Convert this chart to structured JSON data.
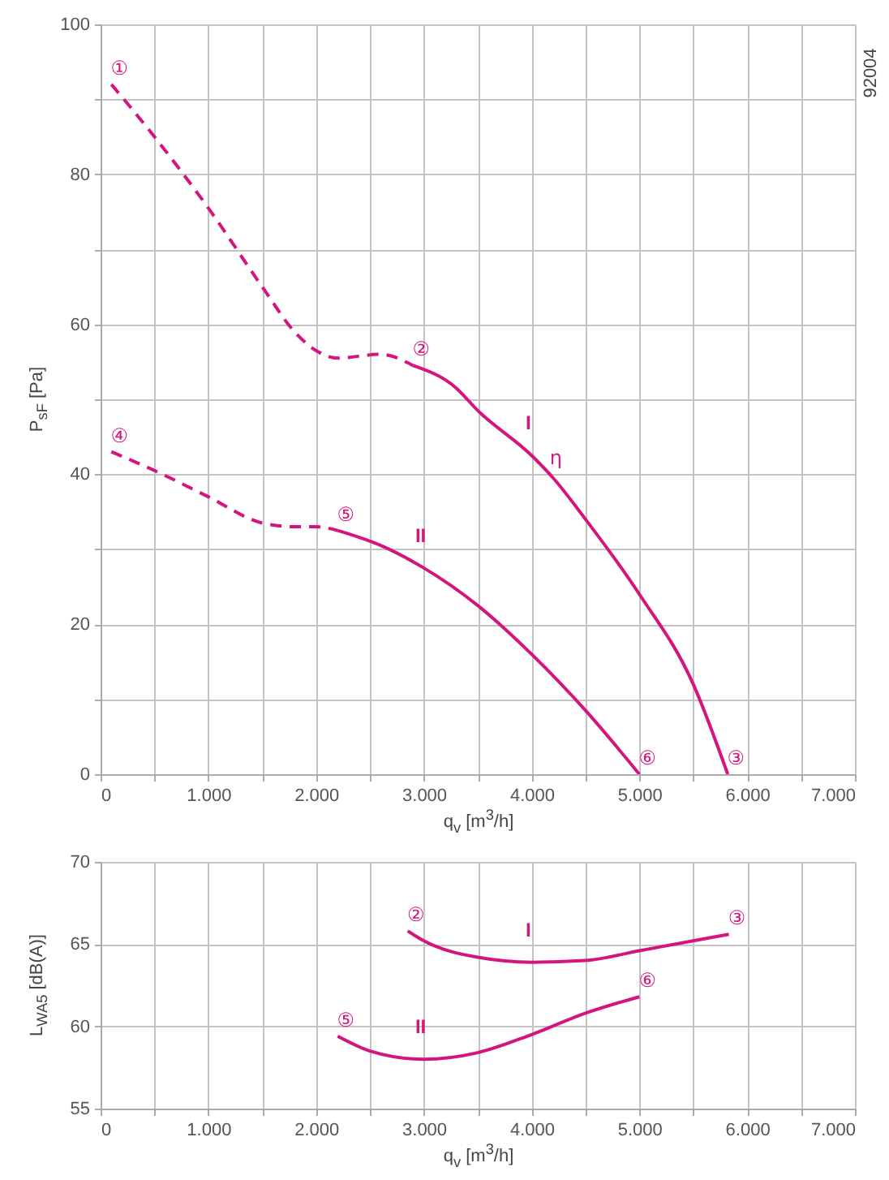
{
  "chart_data": [
    {
      "type": "line",
      "xlabel": "q$_{v}$ [m$^{3}$/h]",
      "ylabel": "P$_{sF}$ [Pa]",
      "xlim": [
        0,
        7000
      ],
      "ylim": [
        0,
        100
      ],
      "xticks": [
        0,
        {
          "value": 500,
          "label": null
        },
        {
          "value": 1000,
          "label": "1.000"
        },
        {
          "value": 1500,
          "label": null
        },
        {
          "value": 2000,
          "label": "2.000"
        },
        {
          "value": 2500,
          "label": null
        },
        {
          "value": 3000,
          "label": "3.000"
        },
        {
          "value": 3500,
          "label": null
        },
        {
          "value": 4000,
          "label": "4.000"
        },
        {
          "value": 4500,
          "label": null
        },
        {
          "value": 5000,
          "label": "5.000"
        },
        {
          "value": 5500,
          "label": null
        },
        {
          "value": 6000,
          "label": "6.000"
        },
        {
          "value": 6500,
          "label": null
        },
        {
          "value": 7000,
          "label": "7.000"
        }
      ],
      "yticks": [
        0,
        {
          "value": 10,
          "label": null
        },
        20,
        {
          "value": 30,
          "label": null
        },
        40,
        {
          "value": 50,
          "label": null
        },
        60,
        {
          "value": 70,
          "label": null
        },
        80,
        {
          "value": 90,
          "label": null
        },
        100
      ],
      "grid": true,
      "series": [
        {
          "color": "#d4157e",
          "line_style": "dashed",
          "x": [
            100,
            500,
            1000,
            1500,
            1800,
            2000,
            2200,
            2600,
            2900
          ],
          "values": [
            92,
            85,
            75.5,
            65,
            59,
            56.5,
            55.5,
            56,
            54.5
          ]
        },
        {
          "name": "I",
          "color": "#d4157e",
          "line_style": "solid",
          "x": [
            2900,
            3300,
            3500,
            4000,
            4200,
            4500,
            5000,
            5500,
            5820
          ],
          "values": [
            54.5,
            51.5,
            48.5,
            42.5,
            39.5,
            34,
            24,
            12,
            0
          ]
        },
        {
          "color": "#d4157e",
          "line_style": "dashed",
          "x": [
            100,
            500,
            1000,
            1500,
            1800,
            2000,
            2200
          ],
          "values": [
            43,
            40.5,
            37,
            33.5,
            33,
            33,
            32.5
          ]
        },
        {
          "name": "II",
          "color": "#d4157e",
          "line_style": "solid",
          "x": [
            2200,
            2600,
            3000,
            3500,
            4000,
            4500,
            5000
          ],
          "values": [
            32.5,
            30.5,
            27.5,
            22.5,
            16,
            8.5,
            0
          ]
        }
      ],
      "annotations": [
        {
          "text": "①",
          "x": 100,
          "y": 92
        },
        {
          "text": "②",
          "x": 2900,
          "y": 54.5
        },
        {
          "text": "③",
          "x": 5820,
          "y": 0
        },
        {
          "text": "④",
          "x": 100,
          "y": 43
        },
        {
          "text": "⑤",
          "x": 2200,
          "y": 32.5
        },
        {
          "text": "⑥",
          "x": 5000,
          "y": 0
        },
        {
          "text": "η",
          "x": 4150,
          "y": 40
        },
        "92004"
      ]
    },
    {
      "type": "line",
      "xlabel": "q$_{v}$ [m$^{3}$/h]",
      "ylabel": "L$_{WA5}$ [dB(A)]",
      "xlim": [
        0,
        7000
      ],
      "ylim": [
        55,
        70
      ],
      "xticks": [
        0,
        {
          "value": 500,
          "label": null
        },
        {
          "value": 1000,
          "label": "1.000"
        },
        {
          "value": 1500,
          "label": null
        },
        {
          "value": 2000,
          "label": "2.000"
        },
        {
          "value": 2500,
          "label": null
        },
        {
          "value": 3000,
          "label": "3.000"
        },
        {
          "value": 3500,
          "label": null
        },
        {
          "value": 4000,
          "label": "4.000"
        },
        {
          "value": 4500,
          "label": null
        },
        {
          "value": 5000,
          "label": "5.000"
        },
        {
          "value": 5500,
          "label": null
        },
        {
          "value": 6000,
          "label": "6.000"
        },
        {
          "value": 6500,
          "label": null
        },
        {
          "value": 7000,
          "label": "7.000"
        }
      ],
      "yticks": [
        55,
        60,
        65,
        70
      ],
      "grid": true,
      "series": [
        {
          "name": "I",
          "color": "#d4157e",
          "line_style": "solid",
          "x": [
            2850,
            3000,
            3500,
            4000,
            4500,
            5000,
            5500,
            5830
          ],
          "values": [
            65.8,
            65.2,
            64.2,
            63.9,
            64.0,
            64.6,
            65.2,
            65.6
          ]
        },
        {
          "name": "II",
          "color": "#d4157e",
          "line_style": "solid",
          "x": [
            2200,
            2500,
            3000,
            3500,
            4000,
            4500,
            5000
          ],
          "values": [
            59.4,
            58.5,
            58.0,
            58.4,
            59.5,
            60.8,
            61.8
          ]
        }
      ],
      "annotations": [
        {
          "text": "②",
          "x": 2850,
          "y": 65.8
        },
        {
          "text": "③",
          "x": 5830,
          "y": 65.6
        },
        {
          "text": "⑤",
          "x": 2200,
          "y": 59.4
        },
        {
          "text": "⑥",
          "x": 5000,
          "y": 61.8
        }
      ]
    }
  ]
}
